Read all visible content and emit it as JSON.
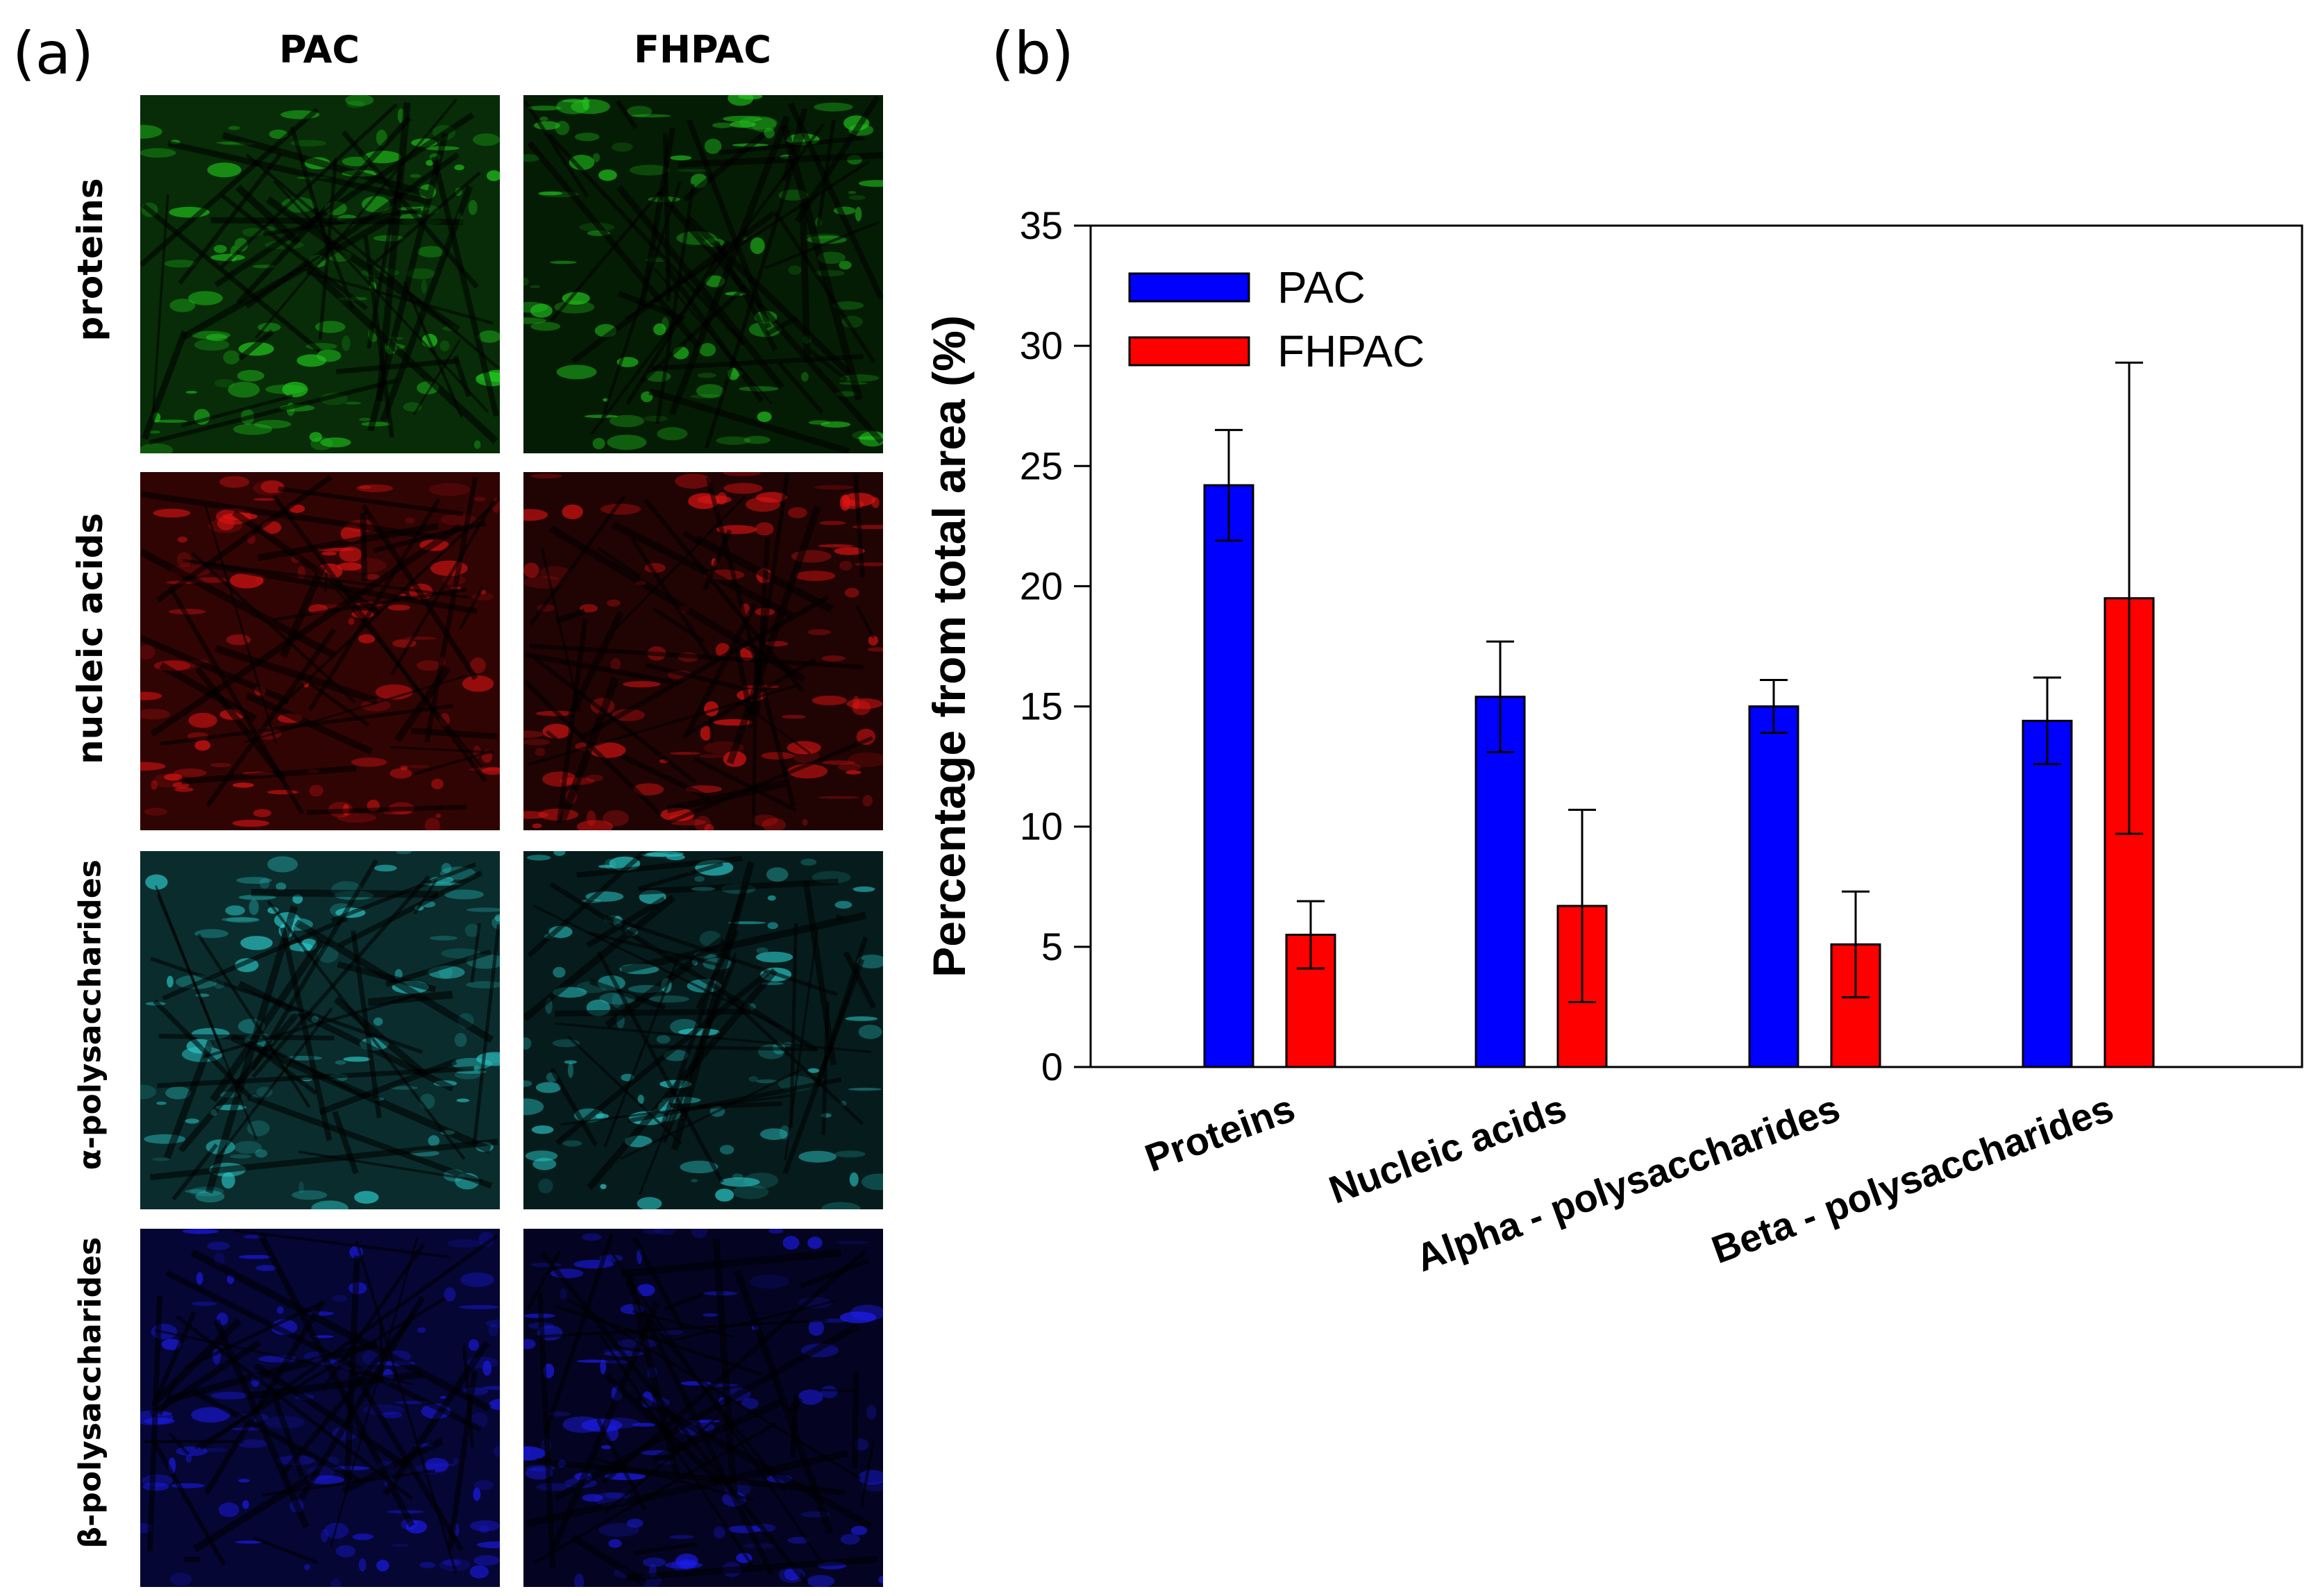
{
  "panel_a": {
    "letter": "(a)",
    "columns": [
      "PAC",
      "FHPAC"
    ],
    "rows": [
      {
        "label": "proteins",
        "color": "#22c81e"
      },
      {
        "label": "nucleic acids",
        "color": "#e01414"
      },
      {
        "label": "α-polysaccharides",
        "color": "#2cc9c9"
      },
      {
        "label": "β-polysaccharides",
        "color": "#1c1cf0"
      }
    ]
  },
  "panel_b": {
    "letter": "(b)"
  },
  "chart_data": {
    "type": "bar",
    "title": "",
    "ylabel": "Percentage from total area (%)",
    "xlabel": "",
    "ylim": [
      0,
      35
    ],
    "yticks": [
      0,
      5,
      10,
      15,
      20,
      25,
      30,
      35
    ],
    "categories": [
      "Proteins",
      "Nucleic acids",
      "Alpha - polysaccharides",
      "Beta - polysaccharides"
    ],
    "series": [
      {
        "name": "PAC",
        "color": "#0000ff",
        "values": [
          24.2,
          15.4,
          15.0,
          14.4
        ],
        "errors": [
          2.3,
          2.3,
          1.1,
          1.8
        ]
      },
      {
        "name": "FHPAC",
        "color": "#ff0000",
        "values": [
          5.5,
          6.7,
          5.1,
          19.5
        ],
        "errors": [
          1.4,
          4.0,
          2.2,
          9.8
        ]
      }
    ],
    "legend": "top-left",
    "grid": false
  }
}
